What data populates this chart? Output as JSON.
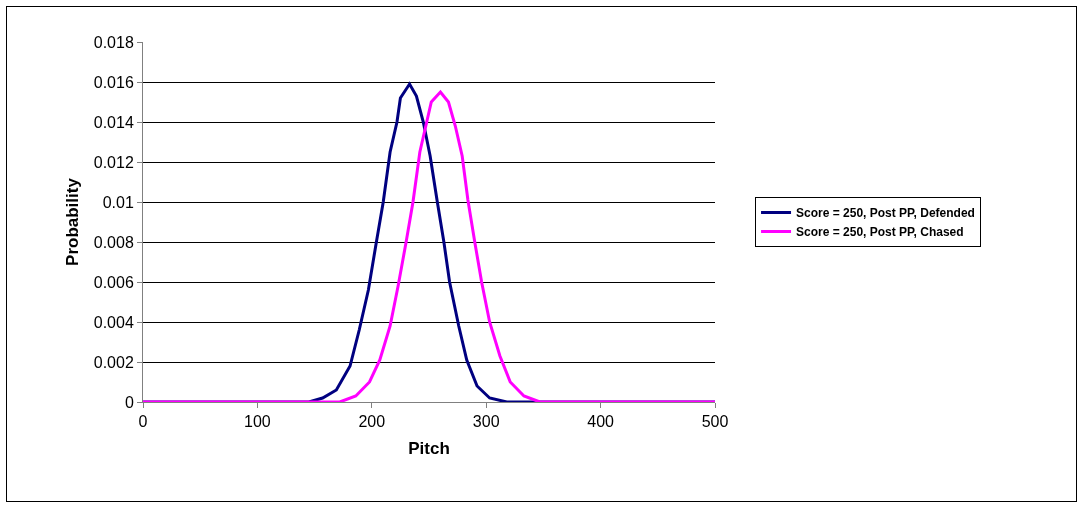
{
  "chart_data": {
    "type": "line",
    "xlabel": "Pitch",
    "ylabel": "Probability",
    "xlim": [
      0,
      500
    ],
    "xticks": [
      0,
      100,
      200,
      300,
      400,
      500
    ],
    "ylim": [
      0,
      0.018
    ],
    "yticks": [
      0,
      0.002,
      0.004,
      0.006,
      0.008,
      0.01,
      0.012,
      0.014,
      0.016,
      0.018
    ],
    "grid": "y",
    "legend": "right",
    "marker": "none",
    "line_style": "solid",
    "series": [
      {
        "name": "Score = 250, Post PP, Defended",
        "color": "#000080",
        "x": [
          0,
          145,
          157,
          169,
          181,
          189,
          197,
          204,
          210,
          216,
          222,
          225,
          233,
          239,
          245,
          251,
          257,
          263,
          268,
          276,
          283,
          292,
          303,
          318,
          500
        ],
        "values": [
          0,
          0,
          0.0002,
          0.0006,
          0.0018,
          0.0036,
          0.0056,
          0.008,
          0.01,
          0.0125,
          0.014,
          0.0152,
          0.0159,
          0.0153,
          0.014,
          0.0123,
          0.0101,
          0.008,
          0.006,
          0.0038,
          0.0021,
          0.0008,
          0.0002,
          0,
          0
        ]
      },
      {
        "name": "Score = 250, Post PP, Chased",
        "color": "#ff00ff",
        "x": [
          0,
          172,
          186,
          198,
          207,
          216,
          223,
          230,
          236,
          242,
          248,
          252,
          260,
          267,
          273,
          279,
          284,
          290,
          296,
          303,
          312,
          321,
          333,
          347,
          500
        ],
        "values": [
          0,
          0,
          0.0003,
          0.001,
          0.0021,
          0.0038,
          0.0058,
          0.008,
          0.01,
          0.0125,
          0.014,
          0.015,
          0.0155,
          0.015,
          0.0138,
          0.0123,
          0.0101,
          0.008,
          0.006,
          0.004,
          0.0023,
          0.001,
          0.0003,
          0,
          0
        ]
      }
    ]
  }
}
